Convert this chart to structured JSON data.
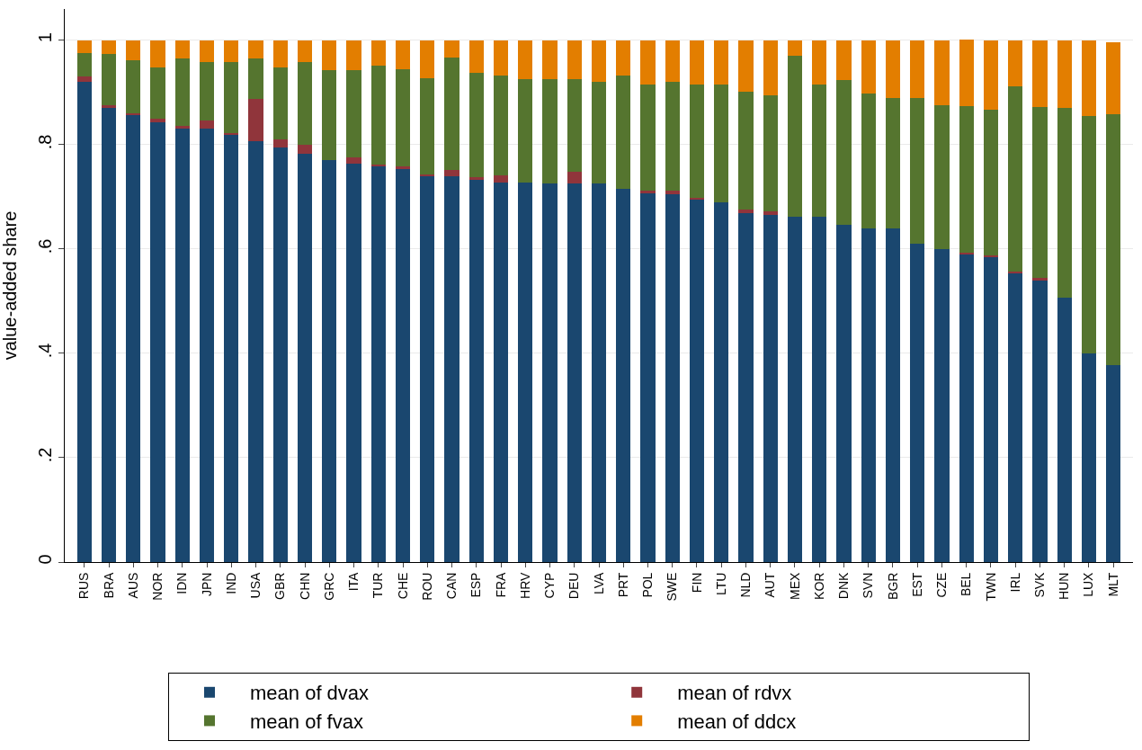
{
  "chart_data": {
    "type": "bar",
    "stacked": true,
    "ylabel": "value-added share",
    "categories": [
      "RUS",
      "BRA",
      "AUS",
      "NOR",
      "IDN",
      "JPN",
      "IND",
      "USA",
      "GBR",
      "CHN",
      "GRC",
      "ITA",
      "TUR",
      "CHE",
      "ROU",
      "CAN",
      "ESP",
      "FRA",
      "HRV",
      "CYP",
      "DEU",
      "LVA",
      "PRT",
      "POL",
      "SWE",
      "FIN",
      "LTU",
      "NLD",
      "AUT",
      "MEX",
      "KOR",
      "DNK",
      "SVN",
      "BGR",
      "EST",
      "CZE",
      "BEL",
      "TWN",
      "IRL",
      "SVK",
      "HUN",
      "LUX",
      "MLT"
    ],
    "series": [
      {
        "name": "mean of dvax",
        "color": "#1a476f",
        "values": [
          0.92,
          0.872,
          0.857,
          0.843,
          0.83,
          0.83,
          0.82,
          0.806,
          0.794,
          0.783,
          0.77,
          0.763,
          0.758,
          0.753,
          0.74,
          0.74,
          0.732,
          0.727,
          0.727,
          0.725,
          0.725,
          0.725,
          0.716,
          0.706,
          0.705,
          0.695,
          0.69,
          0.668,
          0.665,
          0.662,
          0.662,
          0.646,
          0.64,
          0.64,
          0.61,
          0.6,
          0.59,
          0.585,
          0.553,
          0.54,
          0.507,
          0.4,
          0.377
        ]
      },
      {
        "name": "mean of rdvx",
        "color": "#90353b",
        "values": [
          0.01,
          0.003,
          0.003,
          0.007,
          0.006,
          0.016,
          0.003,
          0.081,
          0.016,
          0.017,
          0,
          0.012,
          0.004,
          0.005,
          0.003,
          0.012,
          0.005,
          0.015,
          0,
          0,
          0.023,
          0,
          0,
          0.006,
          0.007,
          0.003,
          0,
          0.008,
          0.007,
          0,
          0,
          0,
          0,
          0,
          0,
          0,
          0.003,
          0.003,
          0.004,
          0.005,
          0,
          0,
          0
        ]
      },
      {
        "name": "mean of fvax",
        "color": "#55752f",
        "values": [
          0.045,
          0.098,
          0.102,
          0.098,
          0.129,
          0.112,
          0.135,
          0.078,
          0.138,
          0.158,
          0.172,
          0.167,
          0.189,
          0.187,
          0.184,
          0.215,
          0.201,
          0.191,
          0.199,
          0.201,
          0.178,
          0.195,
          0.217,
          0.203,
          0.208,
          0.217,
          0.225,
          0.226,
          0.223,
          0.308,
          0.253,
          0.277,
          0.258,
          0.249,
          0.279,
          0.276,
          0.281,
          0.279,
          0.354,
          0.327,
          0.364,
          0.455,
          0.481
        ]
      },
      {
        "name": "mean of ddcx",
        "color": "#e37e00",
        "values": [
          0.025,
          0.027,
          0.038,
          0.052,
          0.035,
          0.042,
          0.042,
          0.035,
          0.052,
          0.042,
          0.058,
          0.058,
          0.049,
          0.055,
          0.073,
          0.033,
          0.062,
          0.067,
          0.074,
          0.074,
          0.074,
          0.08,
          0.067,
          0.085,
          0.08,
          0.085,
          0.085,
          0.098,
          0.105,
          0.03,
          0.085,
          0.077,
          0.102,
          0.111,
          0.111,
          0.124,
          0.127,
          0.133,
          0.089,
          0.128,
          0.129,
          0.145,
          0.139
        ]
      }
    ],
    "ylim": [
      0,
      1.06
    ],
    "yticks": [
      0,
      {
        "value": 0.2,
        "label": ".2"
      },
      {
        "value": 0.4,
        "label": ".4"
      },
      {
        "value": 0.6,
        "label": ".6"
      },
      {
        "value": 0.8,
        "label": ".8"
      },
      1
    ],
    "grid": "y",
    "legend": "bottom"
  }
}
